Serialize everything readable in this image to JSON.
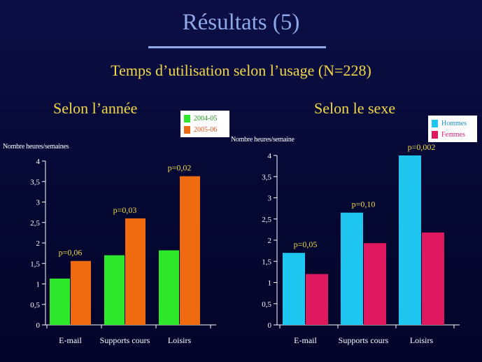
{
  "title": "Résultats (5)",
  "subtitle": "Temps d’utilisation selon l’usage (N=228)",
  "colors": {
    "title": "#8fa8e8",
    "accent_text": "#f2d84a",
    "series_green": "#2ee82b",
    "series_orange": "#f06a10",
    "series_cyan": "#1fc6f0",
    "series_pink": "#e0195e"
  },
  "chart_data": [
    {
      "type": "bar",
      "title": "Selon l’année",
      "ylabel": "Nombre heures/semaines",
      "xlabel": "",
      "ylim": [
        0,
        4
      ],
      "yticks": [
        "0",
        "0,5",
        "1",
        "1,5",
        "2",
        "2,5",
        "3",
        "3,5",
        "4"
      ],
      "categories": [
        "E-mail",
        "Supports cours",
        "Loisirs"
      ],
      "series": [
        {
          "name": "2004-05",
          "values": [
            1.13,
            1.7,
            1.82
          ]
        },
        {
          "name": "2005-06",
          "values": [
            1.56,
            2.6,
            3.63
          ]
        }
      ],
      "annotations": [
        "p=0,06",
        "p=0,03",
        "p=0,02"
      ],
      "legend": "top-right"
    },
    {
      "type": "bar",
      "title": "Selon le sexe",
      "ylabel": "Nombre heures/semaine",
      "xlabel": "",
      "ylim": [
        0,
        4
      ],
      "yticks": [
        "0",
        "0,5",
        "1",
        "1,5",
        "2",
        "2,5",
        "3",
        "3,5",
        "4"
      ],
      "categories": [
        "E-mail",
        "Supports cours",
        "Loisirs"
      ],
      "series": [
        {
          "name": "Hommes",
          "values": [
            1.7,
            2.65,
            4.0
          ]
        },
        {
          "name": "Femmes",
          "values": [
            1.2,
            1.93,
            2.18
          ]
        }
      ],
      "annotations": [
        "p=0,05",
        "p=0,10",
        "p=0,002"
      ],
      "legend": "top-right"
    }
  ]
}
